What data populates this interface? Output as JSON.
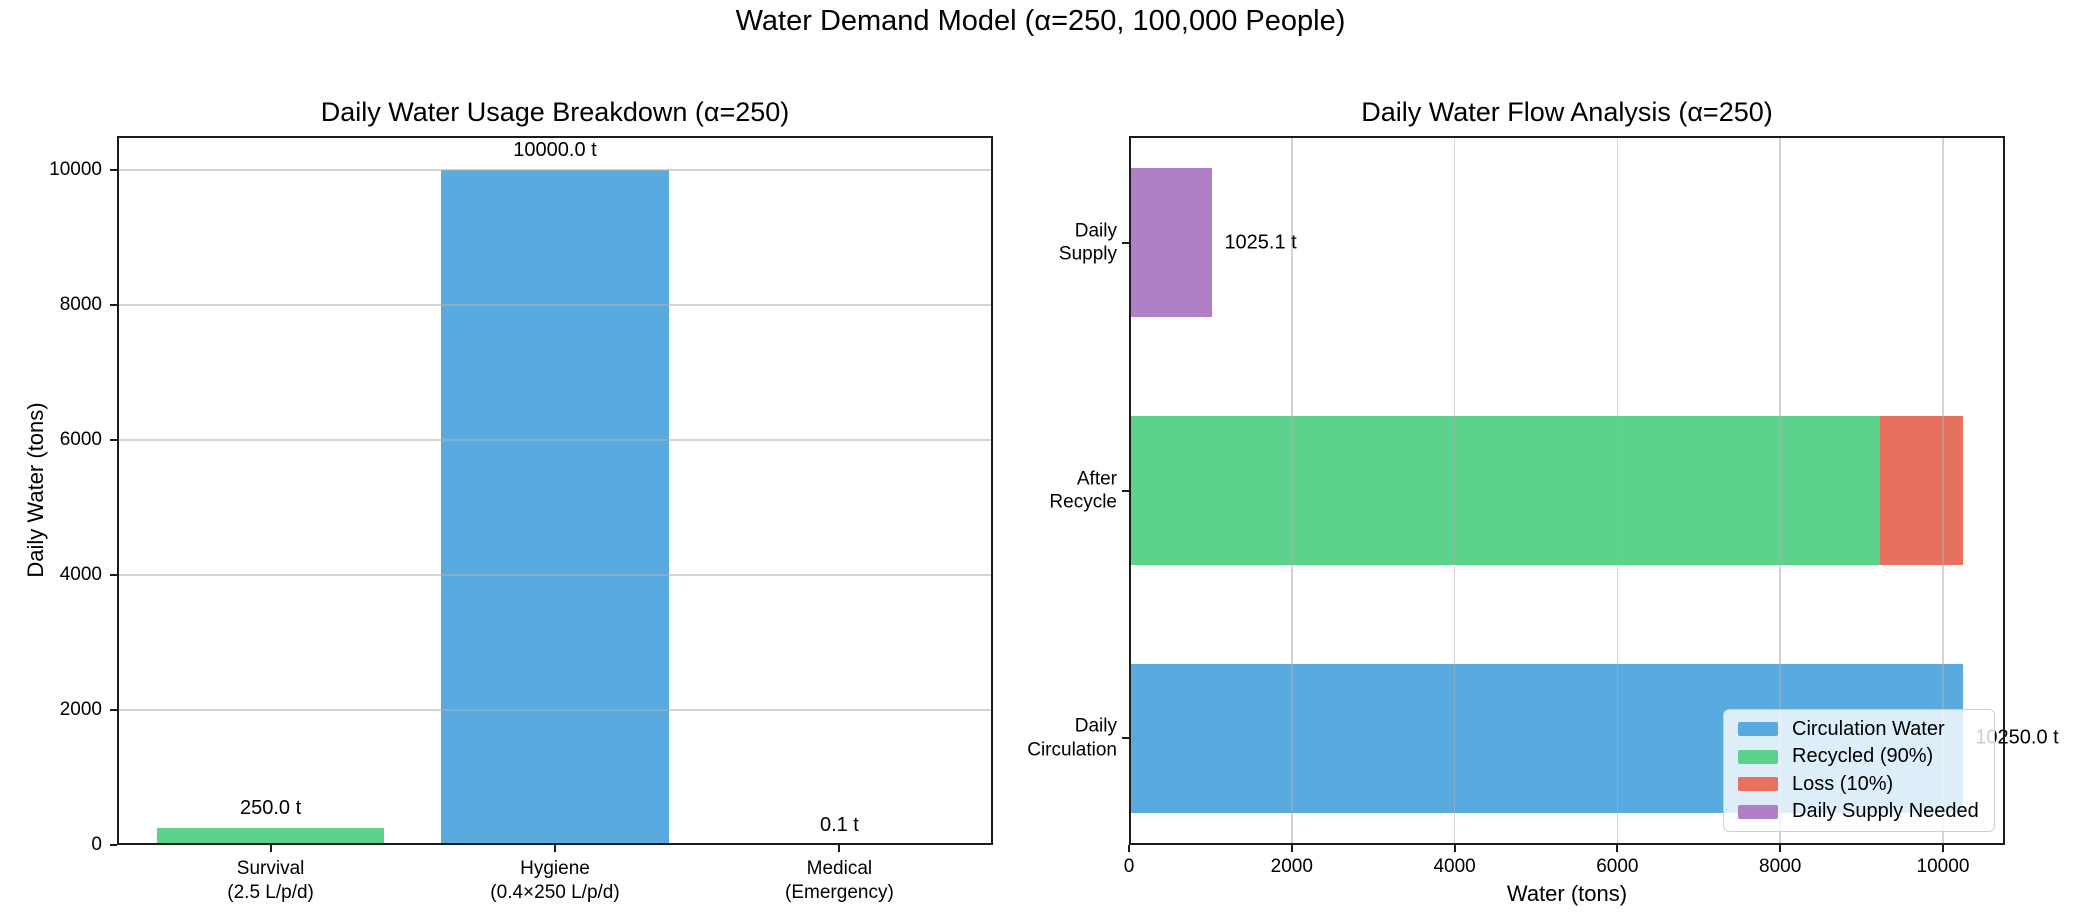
{
  "figure": {
    "title": "Water Demand Model (α=250, 100,000 People)"
  },
  "chart_data": [
    {
      "type": "bar",
      "title": "Daily Water Usage Breakdown (α=250)",
      "ylabel": "Daily Water (tons)",
      "categories": [
        "Survival\n(2.5 L/p/d)",
        "Hygiene\n(0.4×250 L/p/d)",
        "Medical\n(Emergency)"
      ],
      "values": [
        250.0,
        10000.0,
        0.1
      ],
      "value_labels": [
        "250.0 t",
        "10000.0 t",
        "0.1 t"
      ],
      "colors": [
        "#5CD38C",
        "#59AADF",
        "#E7705F"
      ],
      "yticks": [
        0,
        2000,
        4000,
        6000,
        8000,
        10000
      ],
      "ylim": [
        0,
        10500
      ],
      "grid": "y"
    },
    {
      "type": "barh",
      "title": "Daily Water Flow Analysis (α=250)",
      "xlabel": "Water (tons)",
      "categories": [
        "Daily\nSupply",
        "After\nRecycle",
        "Daily\nCirculation"
      ],
      "rows": [
        {
          "category": "Daily Supply",
          "segments": [
            {
              "name": "Daily Supply Needed",
              "value": 1025.1,
              "color": "#B07FC6"
            }
          ],
          "label": "1025.1 t"
        },
        {
          "category": "After Recycle",
          "segments": [
            {
              "name": "Recycled (90%)",
              "value": 9225.0,
              "color": "#5CD38C"
            },
            {
              "name": "Loss (10%)",
              "value": 1025.0,
              "color": "#E7705F"
            }
          ],
          "label": ""
        },
        {
          "category": "Daily Circulation",
          "segments": [
            {
              "name": "Circulation Water",
              "value": 10250.0,
              "color": "#59AADF"
            }
          ],
          "label": "10250.0 t"
        }
      ],
      "xticks": [
        0,
        2000,
        4000,
        6000,
        8000,
        10000
      ],
      "xlim": [
        0,
        10762
      ],
      "grid": "x",
      "legend": {
        "position": "lower right",
        "entries": [
          {
            "label": "Circulation Water",
            "color": "#59AADF"
          },
          {
            "label": "Recycled (90%)",
            "color": "#5CD38C"
          },
          {
            "label": "Loss (10%)",
            "color": "#E7705F"
          },
          {
            "label": "Daily Supply Needed",
            "color": "#B07FC6"
          }
        ]
      }
    }
  ]
}
